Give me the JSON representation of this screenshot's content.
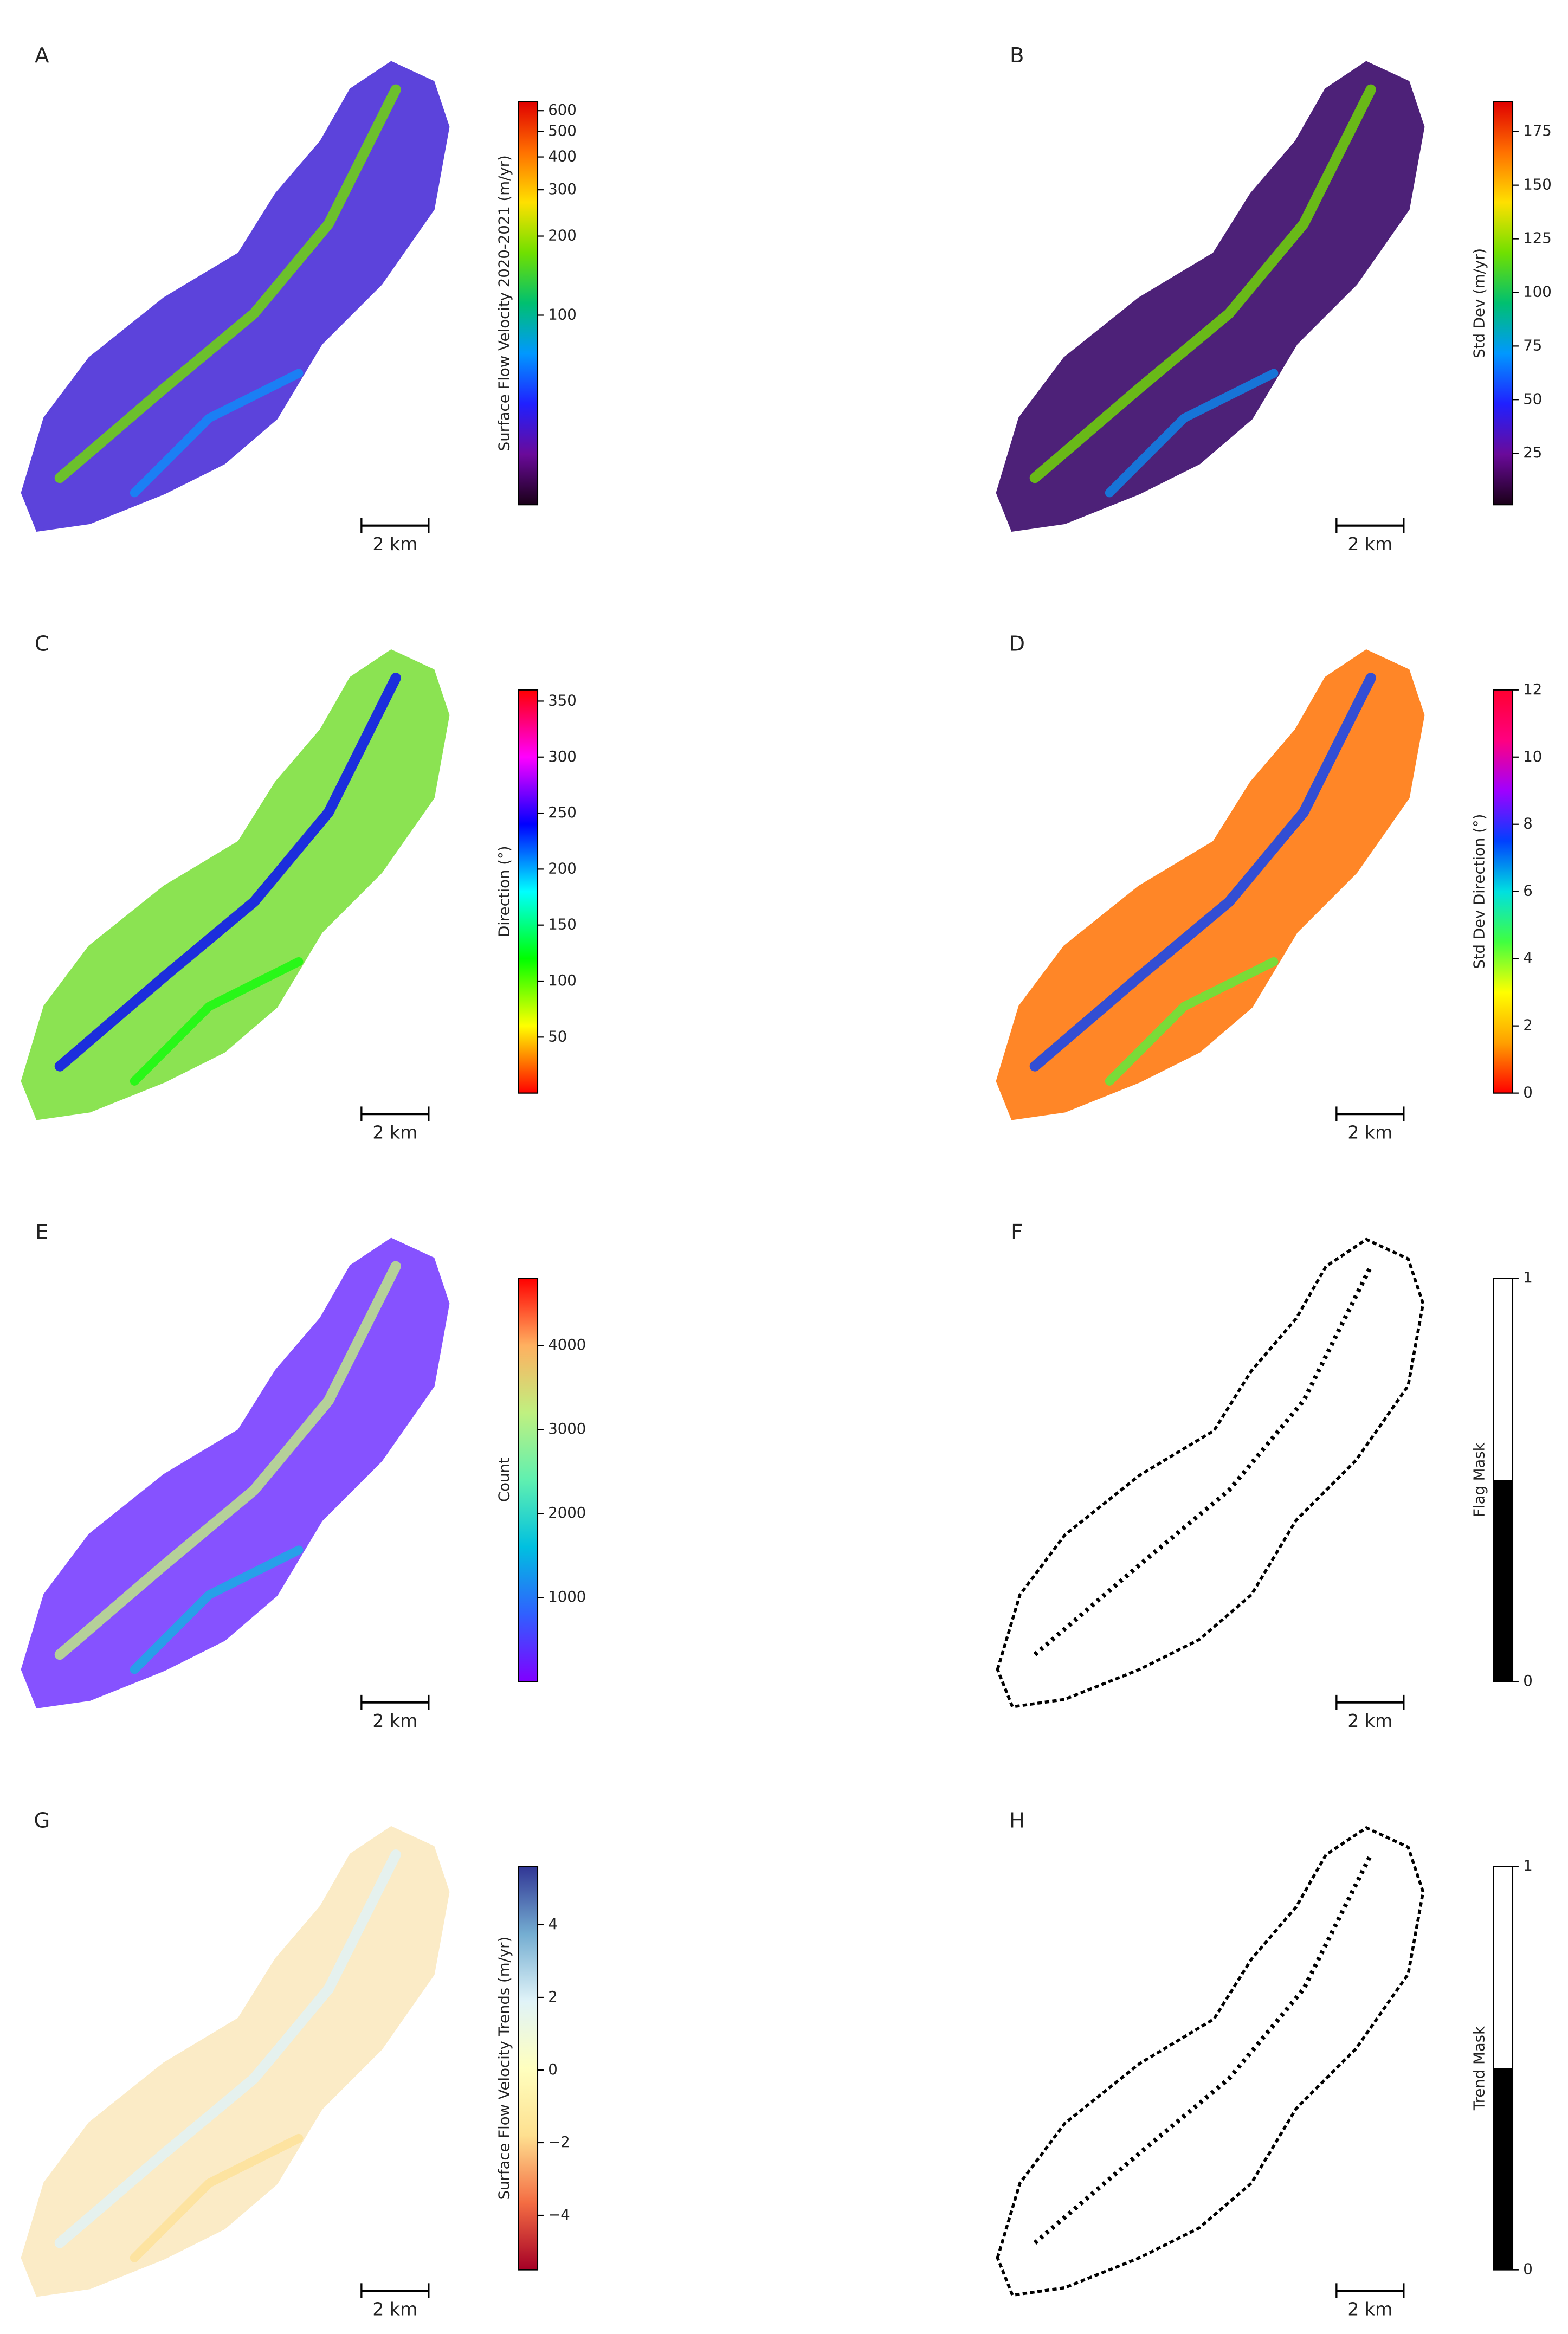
{
  "panels": [
    {
      "label": "A",
      "colorbar_label": "Surface Flow Velocity 2020-2021 (m/yr)",
      "scale": "log",
      "lim": [
        19,
        650
      ],
      "ticks": [
        100,
        200,
        300,
        400,
        500,
        600
      ],
      "colors": [
        "#1a0018",
        "#6a0a9a",
        "#2020ff",
        "#0098ff",
        "#00c070",
        "#70e000",
        "#ffe000",
        "#ff7000",
        "#e00000"
      ],
      "scale_bar": "2 km"
    },
    {
      "label": "B",
      "colorbar_label": "Std Dev (m/yr)",
      "scale": "linear",
      "lim": [
        1,
        189
      ],
      "ticks": [
        25,
        50,
        75,
        100,
        125,
        150,
        175
      ],
      "colors": [
        "#1a0018",
        "#6a0a9a",
        "#2020ff",
        "#0098ff",
        "#00c070",
        "#70e000",
        "#ffe000",
        "#ff7000",
        "#e00000"
      ],
      "scale_bar": "2 km"
    },
    {
      "label": "C",
      "colorbar_label": "Direction (°)",
      "scale": "linear",
      "lim": [
        0,
        360
      ],
      "ticks": [
        50,
        100,
        150,
        200,
        250,
        300,
        350
      ],
      "colors": [
        "#ff0000",
        "#ffff00",
        "#00ff00",
        "#00ffff",
        "#0000ff",
        "#ff00ff",
        "#ff0000"
      ],
      "scale_bar": "2 km"
    },
    {
      "label": "D",
      "colorbar_label": "Std Dev Direction (°)",
      "scale": "linear",
      "lim": [
        0,
        12
      ],
      "ticks": [
        0,
        2,
        4,
        6,
        8,
        10,
        12
      ],
      "colors": [
        "#ff0000",
        "#ffa000",
        "#ffff00",
        "#40ff40",
        "#00e0e0",
        "#0040ff",
        "#a000ff",
        "#ff0080",
        "#ff0030"
      ],
      "scale_bar": "2 km"
    },
    {
      "label": "E",
      "colorbar_label": "Count",
      "scale": "linear",
      "lim": [
        0,
        4800
      ],
      "ticks": [
        1000,
        2000,
        3000,
        4000
      ],
      "colors": [
        "#8000ff",
        "#3060ff",
        "#00c0e0",
        "#60f0b0",
        "#c0f080",
        "#ffb060",
        "#ff0000"
      ],
      "scale_bar": "2 km"
    },
    {
      "label": "F",
      "colorbar_label": "Flag Mask",
      "scale": "discrete",
      "lim": [
        0,
        1
      ],
      "ticks": [
        0,
        1
      ],
      "colors": [
        "#000000",
        "#ffffff"
      ],
      "scale_bar": "2 km"
    },
    {
      "label": "G",
      "colorbar_label": "Surface Flow Velocity Trends (m/yr)",
      "scale": "linear",
      "lim": [
        -5.5,
        5.6
      ],
      "ticks": [
        {
          "value": -4,
          "label": "−4"
        },
        {
          "value": -2,
          "label": "−2"
        },
        0,
        2,
        4
      ],
      "colors": [
        "#a50026",
        "#f46d43",
        "#fee090",
        "#ffffbf",
        "#e0f3f8",
        "#74add1",
        "#313695"
      ],
      "scale_bar": "2 km"
    },
    {
      "label": "H",
      "colorbar_label": "Trend Mask",
      "scale": "discrete",
      "lim": [
        0,
        1
      ],
      "ticks": [
        0,
        1
      ],
      "colors": [
        "#000000",
        "#ffffff"
      ],
      "scale_bar": "2 km"
    }
  ]
}
